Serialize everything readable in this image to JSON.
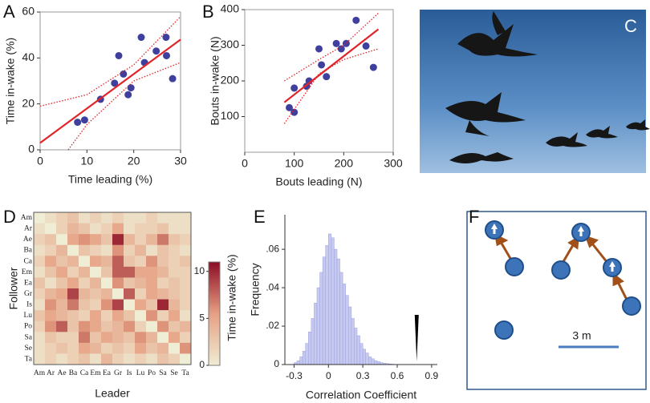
{
  "chart_data": [
    {
      "type": "scatter",
      "label": "A",
      "xlabel": "Time leading (%)",
      "ylabel": "Time in-wake (%)",
      "xlim": [
        0,
        30
      ],
      "ylim": [
        0,
        60
      ],
      "xticks": [
        0,
        10,
        20,
        30
      ],
      "yticks": [
        0,
        20,
        40,
        60
      ],
      "series": [
        {
          "color": "#3f3f9e",
          "x": [
            8,
            9.5,
            12.9,
            15.9,
            16.8,
            17.8,
            18.8,
            19.4,
            21.6,
            22.3,
            24.8,
            26.9,
            27,
            28.3
          ],
          "values": [
            12,
            13,
            22,
            29,
            41,
            33,
            24,
            27,
            49,
            38,
            43,
            49,
            41,
            31
          ]
        },
        {
          "color": "#e0242a",
          "style": "line",
          "x": [
            0,
            30
          ],
          "values": [
            3,
            48
          ]
        },
        {
          "color": "#e0242a",
          "style": "dotted",
          "x": [
            0,
            10,
            20,
            30
          ],
          "values": [
            19,
            24,
            37,
            58
          ]
        },
        {
          "color": "#e0242a",
          "style": "dotted",
          "x": [
            6,
            10,
            20,
            30
          ],
          "values": [
            0,
            11,
            30,
            38
          ]
        }
      ]
    },
    {
      "type": "scatter",
      "label": "B",
      "xlabel": "Bouts leading (N)",
      "ylabel": "Bouts in-wake (N)",
      "xlim": [
        0,
        300
      ],
      "ylim": [
        0,
        400
      ],
      "xticks": [
        0,
        100,
        200,
        300
      ],
      "yticks": [
        100,
        200,
        300,
        400
      ],
      "series": [
        {
          "color": "#3f3f9e",
          "x": [
            90,
            100,
            100,
            125,
            130,
            150,
            155,
            165,
            185,
            195,
            205,
            225,
            245,
            260
          ],
          "values": [
            125,
            112,
            180,
            185,
            200,
            290,
            245,
            212,
            305,
            290,
            305,
            370,
            298,
            238
          ]
        },
        {
          "color": "#e0242a",
          "style": "line",
          "x": [
            80,
            270
          ],
          "values": [
            140,
            345
          ]
        },
        {
          "color": "#e0242a",
          "style": "dotted",
          "x": [
            80,
            150,
            200,
            270
          ],
          "values": [
            200,
            260,
            300,
            390
          ]
        },
        {
          "color": "#e0242a",
          "style": "dotted",
          "x": [
            80,
            150,
            200,
            270
          ],
          "values": [
            80,
            220,
            260,
            290
          ]
        }
      ]
    },
    {
      "type": "heatmap",
      "label": "D",
      "xlabel": "Leader",
      "ylabel": "Follower",
      "colorbar_label": "Time in-wake (%)",
      "x_categories": [
        "Am",
        "Ar",
        "Ae",
        "Ba",
        "Ca",
        "Em",
        "Ea",
        "Gr",
        "Is",
        "Lu",
        "Po",
        "Sa",
        "Se",
        "Ta"
      ],
      "y_categories": [
        "Am",
        "Ar",
        "Ae",
        "Ba",
        "Ca",
        "Em",
        "Ea",
        "Gr",
        "Is",
        "Lu",
        "Po",
        "Sa",
        "Se",
        "Ta"
      ],
      "clim": [
        0,
        11
      ],
      "cticks": [
        0,
        5,
        10
      ],
      "colormap": [
        "#efedd4",
        "#e6a184",
        "#8c0d25"
      ],
      "values": [
        [
          0,
          1,
          2,
          3,
          1,
          2,
          1,
          2,
          1,
          1,
          2,
          1,
          1,
          1
        ],
        [
          1,
          0,
          2,
          4,
          3,
          1,
          2,
          5,
          1,
          2,
          2,
          3,
          1,
          1
        ],
        [
          2,
          3,
          0,
          5,
          6,
          5,
          3,
          10,
          4,
          2,
          4,
          7,
          3,
          2
        ],
        [
          1,
          2,
          4,
          0,
          3,
          2,
          1,
          6,
          2,
          4,
          1,
          3,
          2,
          1
        ],
        [
          2,
          5,
          3,
          4,
          0,
          5,
          4,
          8,
          3,
          2,
          6,
          3,
          2,
          3
        ],
        [
          1,
          3,
          5,
          2,
          4,
          0,
          3,
          8,
          8,
          5,
          5,
          4,
          2,
          2
        ],
        [
          3,
          1,
          3,
          5,
          2,
          4,
          0,
          6,
          3,
          4,
          5,
          2,
          3,
          2
        ],
        [
          2,
          4,
          5,
          9,
          4,
          3,
          4,
          0,
          8,
          2,
          5,
          4,
          3,
          2
        ],
        [
          1,
          6,
          4,
          7,
          3,
          2,
          6,
          9,
          0,
          5,
          3,
          10,
          4,
          2
        ],
        [
          3,
          5,
          4,
          3,
          2,
          5,
          2,
          5,
          3,
          0,
          6,
          2,
          5,
          1
        ],
        [
          2,
          6,
          8,
          3,
          6,
          5,
          3,
          4,
          6,
          2,
          0,
          6,
          3,
          4
        ],
        [
          1,
          3,
          2,
          2,
          7,
          3,
          5,
          4,
          3,
          6,
          4,
          0,
          5,
          2
        ],
        [
          1,
          2,
          3,
          2,
          5,
          4,
          2,
          3,
          2,
          5,
          3,
          4,
          0,
          6
        ],
        [
          1,
          2,
          1,
          2,
          3,
          1,
          4,
          2,
          1,
          2,
          1,
          3,
          2,
          0
        ]
      ]
    },
    {
      "type": "histogram",
      "label": "E",
      "xlabel": "Correlation Coefficient",
      "ylabel": "Frequency",
      "color": "#c6c9f0",
      "edge_color": "#9da2de",
      "observed": 0.77,
      "observed_color": "#000000",
      "xlim": [
        -0.38,
        0.95
      ],
      "ylim": [
        0,
        0.078
      ],
      "xticks": [
        -0.3,
        0,
        0.3,
        0.6,
        0.9
      ],
      "yticks": [
        {
          "value": 0,
          "label": "0"
        },
        {
          "value": 0.02,
          "label": ".02"
        },
        {
          "value": 0.04,
          "label": ".04"
        },
        {
          "value": 0.06,
          "label": ".06"
        }
      ],
      "bins": [
        -0.3,
        -0.275,
        -0.25,
        -0.225,
        -0.2,
        -0.175,
        -0.15,
        -0.125,
        -0.1,
        -0.075,
        -0.05,
        -0.025,
        0,
        0.025,
        0.05,
        0.075,
        0.1,
        0.125,
        0.15,
        0.175,
        0.2,
        0.225,
        0.25,
        0.275,
        0.3,
        0.325,
        0.35,
        0.375,
        0.4,
        0.425,
        0.45,
        0.475,
        0.5,
        0.525,
        0.55,
        0.575,
        0.6,
        0.625
      ],
      "values": [
        0.001,
        0.002,
        0.004,
        0.007,
        0.011,
        0.017,
        0.024,
        0.032,
        0.04,
        0.048,
        0.056,
        0.062,
        0.068,
        0.066,
        0.06,
        0.055,
        0.048,
        0.042,
        0.036,
        0.03,
        0.024,
        0.019,
        0.015,
        0.011,
        0.008,
        0.006,
        0.004,
        0.003,
        0.002,
        0.0015,
        0.001,
        0.0007,
        0.0005,
        0.0003,
        0.0002,
        0.0001,
        0.0001
      ]
    }
  ],
  "photo_panel": {
    "label": "C"
  },
  "diagram_panel": {
    "label": "F",
    "scale_label": "3 m"
  }
}
